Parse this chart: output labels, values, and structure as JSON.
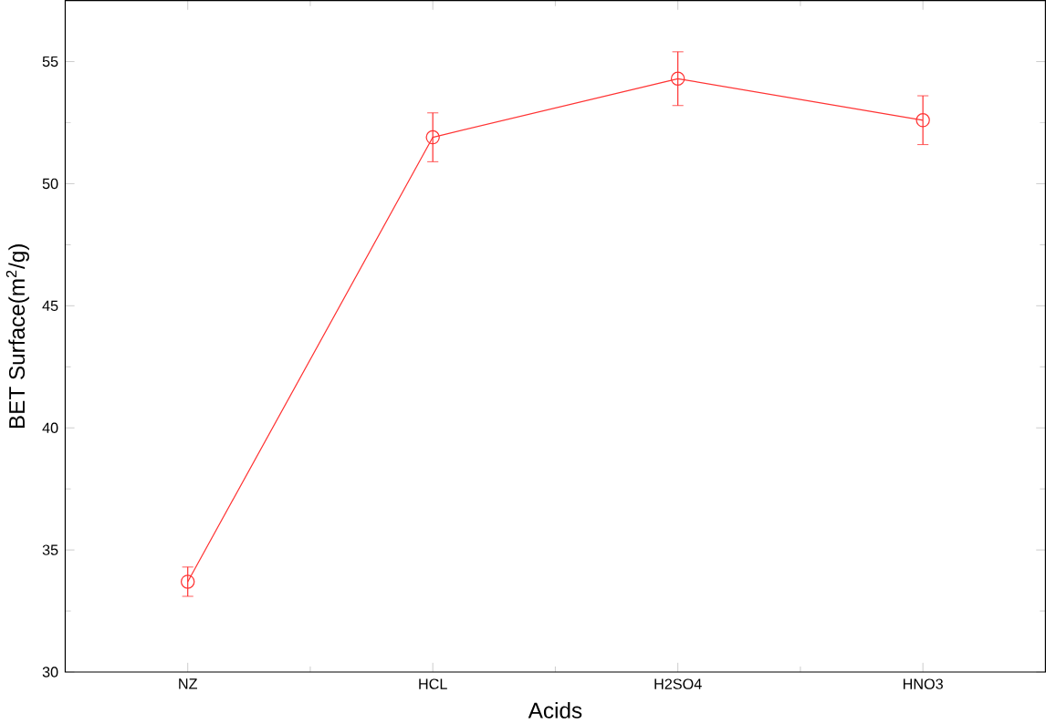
{
  "chart_data": {
    "type": "line",
    "xlabel": "Acids",
    "ylabel": "BET Surface(m$^{2}$/g)",
    "categories": [
      "NZ",
      "HCL",
      "H2SO4",
      "HNO3"
    ],
    "values": [
      33.7,
      51.9,
      54.3,
      52.6
    ],
    "errors": [
      0.6,
      1.0,
      1.1,
      1.0
    ],
    "color": "#ff3333",
    "marker": "circle",
    "ylim": [
      30,
      57.5
    ],
    "yticks": [
      30,
      35,
      40,
      45,
      50,
      55
    ],
    "grid": false
  }
}
